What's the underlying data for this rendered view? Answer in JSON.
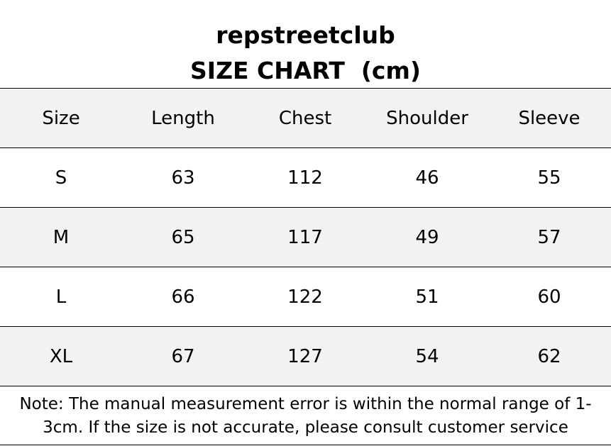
{
  "header": {
    "title": "repstreetclub",
    "subtitle": "SIZE CHART  (cm)"
  },
  "table": {
    "columns": [
      "Size",
      "Length",
      "Chest",
      "Shoulder",
      "Sleeve"
    ],
    "rows": [
      [
        "S",
        63,
        112,
        46,
        55
      ],
      [
        "M",
        65,
        117,
        49,
        57
      ],
      [
        "L",
        66,
        122,
        51,
        60
      ],
      [
        "XL",
        67,
        127,
        54,
        62
      ]
    ]
  },
  "note": {
    "lines": [
      "Note: The manual measurement error is within the normal range of 1-",
      "3cm. If the size is not accurate, please consult customer service"
    ]
  }
}
